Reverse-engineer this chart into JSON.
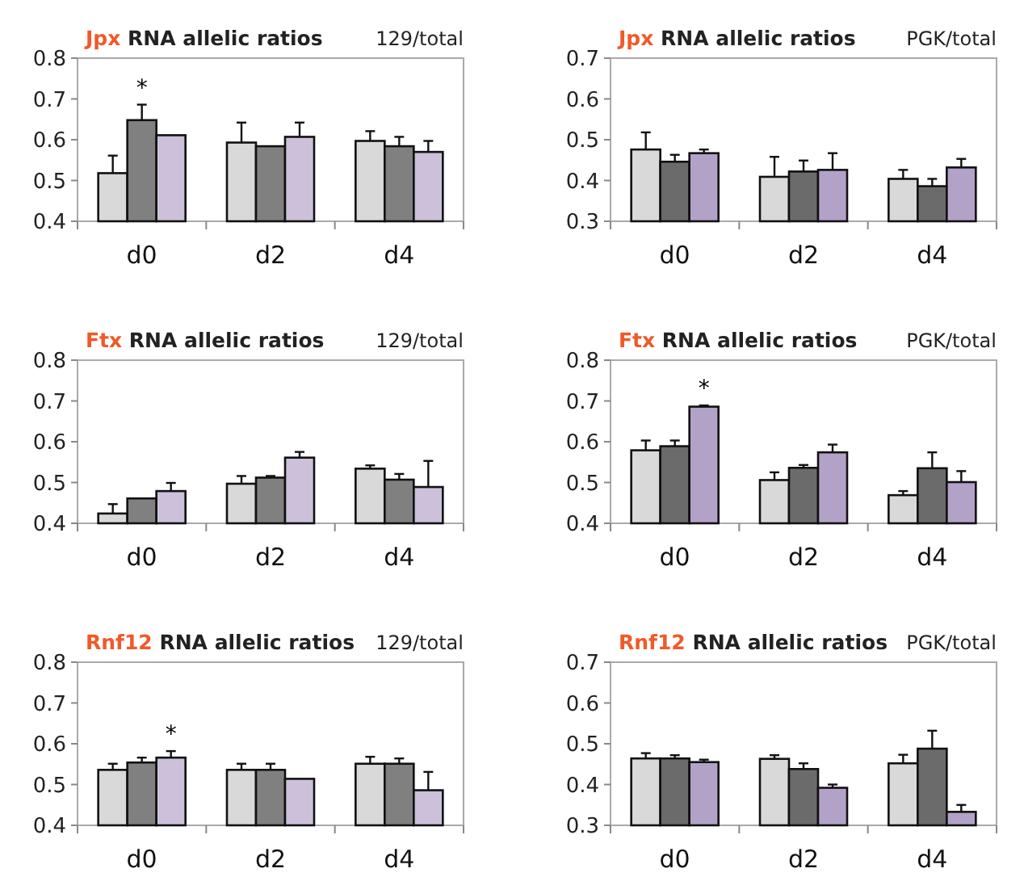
{
  "chart_data": [
    {
      "type": "bar",
      "title": "Jpx RNA allelic ratios",
      "subtitle": "129/total",
      "categories": [
        "d0",
        "d2",
        "d4"
      ],
      "ylim": [
        0.4,
        0.8
      ],
      "yticks": [
        0.4,
        0.5,
        0.6,
        0.7,
        0.8
      ],
      "annotations": [
        "*"
      ],
      "series": [
        {
          "color": "#d9d9d9",
          "values": [
            0.518,
            0.593,
            0.597
          ],
          "errors": [
            [
              0.518,
              0.561
            ],
            [
              0.593,
              0.642
            ],
            [
              0.597,
              0.621
            ]
          ]
        },
        {
          "color": "#808080",
          "values": [
            0.648,
            0.584,
            0.584
          ],
          "errors": [
            [
              0.648,
              0.686
            ],
            null,
            [
              0.584,
              0.607
            ]
          ]
        },
        {
          "color": "#ccc0da",
          "values": [
            0.611,
            0.607,
            0.57
          ],
          "errors": [
            null,
            [
              0.607,
              0.642
            ],
            [
              0.57,
              0.597
            ]
          ]
        }
      ]
    },
    {
      "type": "bar",
      "title": "Jpx RNA allelic ratios",
      "subtitle": "PGK/total",
      "categories": [
        "d0",
        "d2",
        "d4"
      ],
      "ylim": [
        0.3,
        0.7
      ],
      "yticks": [
        0.3,
        0.4,
        0.5,
        0.6,
        0.7
      ],
      "series": [
        {
          "color": "#d9d9d9",
          "values": [
            0.476,
            0.409,
            0.404
          ],
          "errors": [
            [
              0.476,
              0.518
            ],
            [
              0.409,
              0.458
            ],
            [
              0.404,
              0.426
            ]
          ]
        },
        {
          "color": "#6b6b6b",
          "values": [
            0.446,
            0.422,
            0.386
          ],
          "errors": [
            [
              0.446,
              0.463
            ],
            [
              0.422,
              0.449
            ],
            [
              0.386,
              0.404
            ]
          ]
        },
        {
          "color": "#b3a2c7",
          "values": [
            0.467,
            0.426,
            0.432
          ],
          "errors": [
            [
              0.467,
              0.476
            ],
            [
              0.426,
              0.467
            ],
            [
              0.432,
              0.453
            ]
          ]
        }
      ]
    },
    {
      "type": "bar",
      "title": "Ftx RNA allelic ratios",
      "subtitle": "129/total",
      "categories": [
        "d0",
        "d2",
        "d4"
      ],
      "ylim": [
        0.4,
        0.8
      ],
      "yticks": [
        0.4,
        0.5,
        0.6,
        0.7,
        0.8
      ],
      "series": [
        {
          "color": "#d9d9d9",
          "values": [
            0.424,
            0.497,
            0.534
          ],
          "errors": [
            [
              0.424,
              0.447
            ],
            [
              0.497,
              0.516
            ],
            [
              0.534,
              0.542
            ]
          ]
        },
        {
          "color": "#808080",
          "values": [
            0.461,
            0.512,
            0.507
          ],
          "errors": [
            null,
            [
              0.512,
              0.516
            ],
            [
              0.507,
              0.521
            ]
          ]
        },
        {
          "color": "#ccc0da",
          "values": [
            0.479,
            0.561,
            0.489
          ],
          "errors": [
            [
              0.479,
              0.499
            ],
            [
              0.561,
              0.575
            ],
            [
              0.489,
              0.553
            ]
          ]
        }
      ]
    },
    {
      "type": "bar",
      "title": "Ftx RNA allelic ratios",
      "subtitle": "PGK/total",
      "categories": [
        "d0",
        "d2",
        "d4"
      ],
      "ylim": [
        0.4,
        0.8
      ],
      "yticks": [
        0.4,
        0.5,
        0.6,
        0.7,
        0.8
      ],
      "annotations": [
        "*"
      ],
      "series": [
        {
          "color": "#d9d9d9",
          "values": [
            0.579,
            0.506,
            0.469
          ],
          "errors": [
            [
              0.579,
              0.603
            ],
            [
              0.506,
              0.525
            ],
            [
              0.469,
              0.479
            ]
          ]
        },
        {
          "color": "#6b6b6b",
          "values": [
            0.589,
            0.536,
            0.535
          ],
          "errors": [
            [
              0.589,
              0.603
            ],
            [
              0.536,
              0.543
            ],
            [
              0.535,
              0.574
            ]
          ]
        },
        {
          "color": "#b3a2c7",
          "values": [
            0.686,
            0.574,
            0.501
          ],
          "errors": [
            [
              0.686,
              0.689
            ],
            [
              0.574,
              0.593
            ],
            [
              0.501,
              0.528
            ]
          ]
        }
      ]
    },
    {
      "type": "bar",
      "title": "Rnf12 RNA allelic ratios",
      "subtitle": "129/total",
      "categories": [
        "d0",
        "d2",
        "d4"
      ],
      "ylim": [
        0.4,
        0.8
      ],
      "yticks": [
        0.4,
        0.5,
        0.6,
        0.7,
        0.8
      ],
      "annotations": [
        "*"
      ],
      "series": [
        {
          "color": "#d9d9d9",
          "values": [
            0.536,
            0.536,
            0.551
          ],
          "errors": [
            [
              0.536,
              0.551
            ],
            [
              0.536,
              0.551
            ],
            [
              0.551,
              0.568
            ]
          ]
        },
        {
          "color": "#808080",
          "values": [
            0.554,
            0.536,
            0.551
          ],
          "errors": [
            [
              0.554,
              0.566
            ],
            [
              0.536,
              0.551
            ],
            [
              0.551,
              0.564
            ]
          ]
        },
        {
          "color": "#ccc0da",
          "values": [
            0.566,
            0.514,
            0.486
          ],
          "errors": [
            [
              0.566,
              0.582
            ],
            null,
            [
              0.486,
              0.531
            ]
          ]
        }
      ]
    },
    {
      "type": "bar",
      "title": "Rnf12 RNA allelic ratios",
      "subtitle": "PGK/total",
      "categories": [
        "d0",
        "d2",
        "d4"
      ],
      "ylim": [
        0.3,
        0.7
      ],
      "yticks": [
        0.3,
        0.4,
        0.5,
        0.6,
        0.7
      ],
      "series": [
        {
          "color": "#d9d9d9",
          "values": [
            0.464,
            0.463,
            0.452
          ],
          "errors": [
            [
              0.464,
              0.477
            ],
            [
              0.463,
              0.472
            ],
            [
              0.452,
              0.473
            ]
          ]
        },
        {
          "color": "#6b6b6b",
          "values": [
            0.464,
            0.438,
            0.488
          ],
          "errors": [
            [
              0.464,
              0.472
            ],
            [
              0.438,
              0.452
            ],
            [
              0.488,
              0.532
            ]
          ]
        },
        {
          "color": "#b3a2c7",
          "values": [
            0.455,
            0.392,
            0.333
          ],
          "errors": [
            [
              0.455,
              0.461
            ],
            [
              0.392,
              0.4
            ],
            [
              0.333,
              0.35
            ]
          ]
        }
      ]
    }
  ]
}
